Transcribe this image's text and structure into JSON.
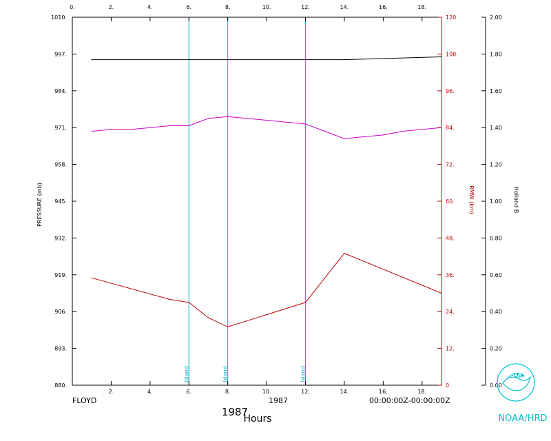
{
  "chart_data": {
    "type": "line",
    "storm_name": "FLOYD",
    "year_center": "1987",
    "year_large": "1987",
    "xlabel": "Hours",
    "time_range": "00:00:00Z-00:00:00Z",
    "xlim": [
      0,
      19
    ],
    "x_ticks_top": [
      "0.",
      "2.",
      "4.",
      "6.",
      "8.",
      "10.",
      "12.",
      "14.",
      "16.",
      "18."
    ],
    "x_ticks_bottom": [
      "2.",
      "4.",
      "6.",
      "8.",
      "10.",
      "12.",
      "14.",
      "16.",
      "18."
    ],
    "y_left": {
      "label": "PRESSURE (mb)",
      "lim": [
        880,
        1010
      ],
      "ticks": [
        "880.",
        "893.",
        "906.",
        "919.",
        "932.",
        "945.",
        "958.",
        "971.",
        "984.",
        "997.",
        "1010."
      ]
    },
    "y_right1": {
      "label": "RMW (km)",
      "lim": [
        0,
        120
      ],
      "ticks": [
        "0.",
        "12.",
        "24.",
        "36.",
        "48.",
        "60.",
        "72.",
        "84.",
        "96.",
        "108.",
        "120."
      ]
    },
    "y_right2": {
      "label": "Holland B",
      "lim": [
        0,
        2
      ],
      "ticks": [
        "0.00",
        "0.20",
        "0.40",
        "0.60",
        "0.80",
        "1.00",
        "1.20",
        "1.40",
        "1.60",
        "1.80",
        "2.00"
      ]
    },
    "series": [
      {
        "axis": "pressure",
        "color": "#000000",
        "x": [
          1,
          14,
          19
        ],
        "y": [
          995,
          995,
          996
        ]
      },
      {
        "axis": "holland",
        "color": "#cc00cc",
        "x": [
          1,
          2,
          3,
          4,
          5,
          6,
          7,
          8,
          9,
          10,
          11,
          12,
          13,
          14,
          15,
          16,
          17,
          18,
          19
        ],
        "y": [
          1.38,
          1.39,
          1.39,
          1.4,
          1.41,
          1.41,
          1.45,
          1.46,
          1.45,
          1.44,
          1.43,
          1.42,
          1.38,
          1.34,
          1.35,
          1.36,
          1.38,
          1.39,
          1.4
        ]
      },
      {
        "axis": "rmw",
        "color": "#bb0000",
        "x": [
          1,
          5,
          6,
          7,
          8,
          12,
          14,
          19
        ],
        "y": [
          35,
          28,
          27,
          22,
          19,
          27,
          43,
          30
        ]
      }
    ],
    "annotations": [
      {
        "x": 6,
        "label": "Island"
      },
      {
        "x": 8,
        "label": "Island"
      },
      {
        "x": 12,
        "label": "Island"
      }
    ],
    "colors": {
      "pressure_axis": "#000000",
      "rmw_axis": "#bb0000",
      "holland_axis": "#000000",
      "island_line": "#00aabb",
      "logo": "#00c0d0"
    }
  },
  "logo": {
    "text": "NOAA/HRD",
    "emblem_text": "NOAA"
  }
}
